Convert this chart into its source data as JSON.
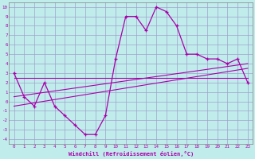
{
  "xlabel": "Windchill (Refroidissement éolien,°C)",
  "bg_color": "#c0ecec",
  "grid_color": "#a0a0cc",
  "line_color": "#aa00aa",
  "xlim": [
    -0.5,
    23.5
  ],
  "ylim": [
    -4.5,
    10.5
  ],
  "xticks": [
    0,
    1,
    2,
    3,
    4,
    5,
    6,
    7,
    8,
    9,
    10,
    11,
    12,
    13,
    14,
    15,
    16,
    17,
    18,
    19,
    20,
    21,
    22,
    23
  ],
  "yticks": [
    -4,
    -3,
    -2,
    -1,
    0,
    1,
    2,
    3,
    4,
    5,
    6,
    7,
    8,
    9,
    10
  ],
  "main_x": [
    0,
    1,
    2,
    3,
    4,
    5,
    6,
    7,
    8,
    9,
    10,
    11,
    12,
    13,
    14,
    15,
    16,
    17,
    18,
    19,
    20,
    21,
    22,
    23
  ],
  "main_y": [
    3,
    0.5,
    -0.5,
    2.0,
    -0.5,
    -1.5,
    -2.5,
    -3.5,
    -3.5,
    -1.5,
    4.5,
    9.0,
    9.0,
    7.5,
    10.0,
    9.5,
    8.0,
    5.0,
    5.0,
    4.5,
    4.5,
    4.0,
    4.5,
    2.0
  ],
  "line1_x": [
    0,
    23
  ],
  "line1_y": [
    2.5,
    2.5
  ],
  "line2_x": [
    0,
    23
  ],
  "line2_y": [
    0.5,
    4.0
  ],
  "line3_x": [
    0,
    23
  ],
  "line3_y": [
    -0.5,
    3.5
  ]
}
